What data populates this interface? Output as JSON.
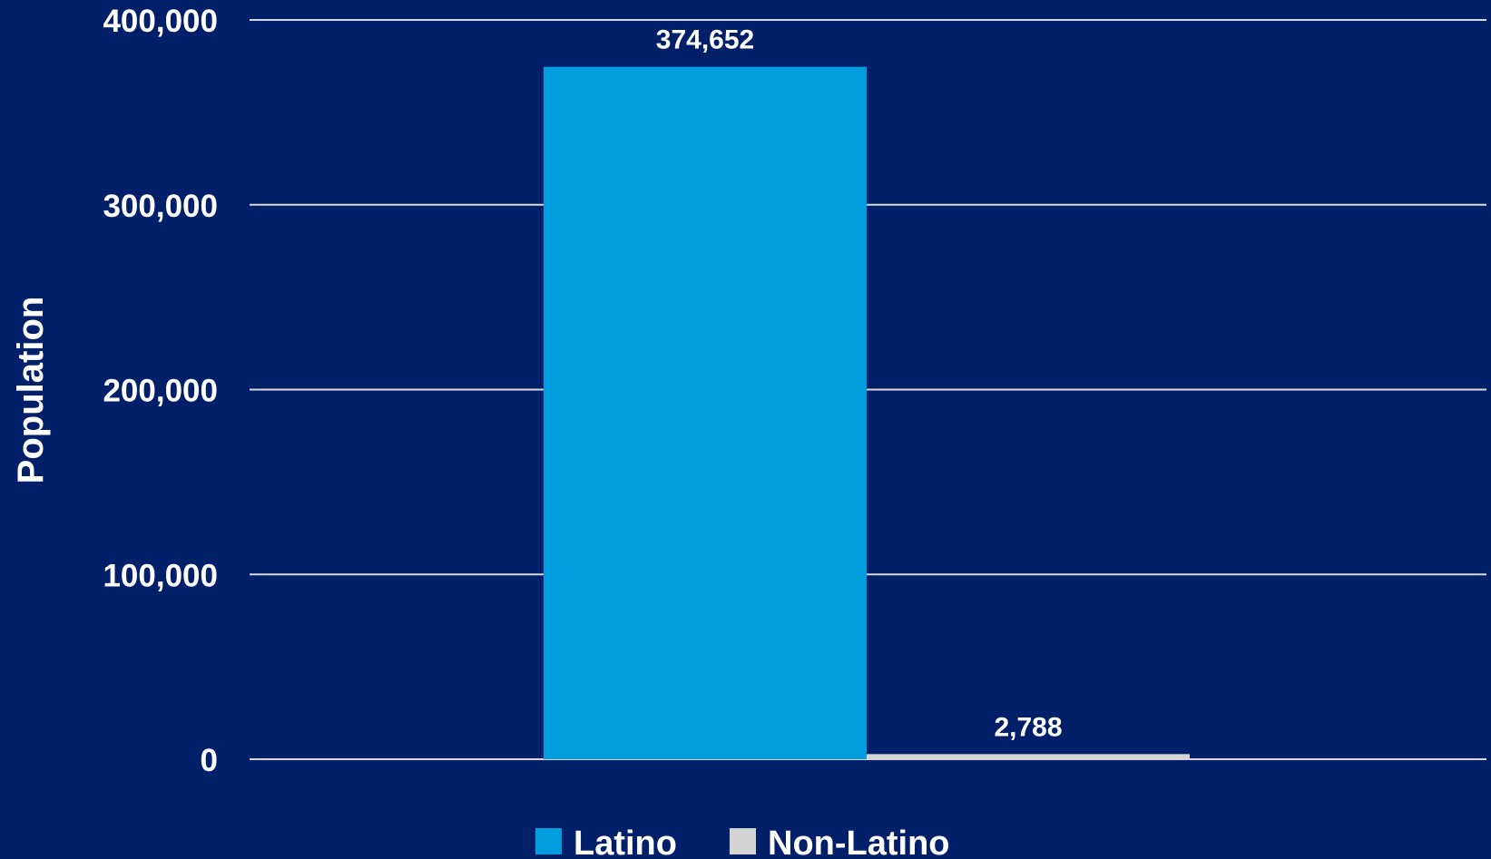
{
  "chart_data": {
    "type": "bar",
    "title": "",
    "xlabel": "",
    "ylabel": "Population",
    "ylim": [
      0,
      400000
    ],
    "yticks": [
      0,
      100000,
      200000,
      300000,
      400000
    ],
    "ytick_labels": [
      "0",
      "100,000",
      "200,000",
      "300,000",
      "400,000"
    ],
    "grid": true,
    "legend_position": "bottom",
    "series": [
      {
        "name": "Latino",
        "values": [
          374652
        ],
        "value_label": "374,652",
        "color": "#009DDF"
      },
      {
        "name": "Non-Latino",
        "values": [
          2788
        ],
        "value_label": "2,788",
        "color": "#D4D4D4"
      }
    ],
    "background_color": "#021F6A",
    "gridline_color": "#D9D9D9"
  }
}
